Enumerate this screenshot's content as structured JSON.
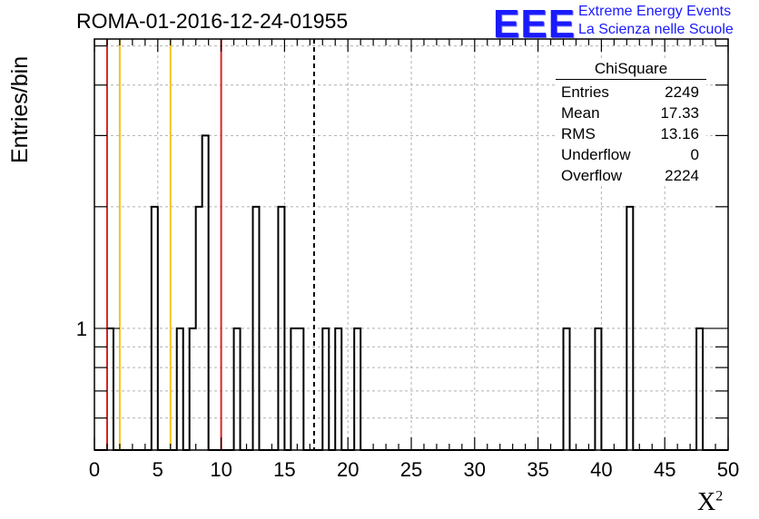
{
  "title": "ROMA-01-2016-12-24-01955",
  "logo": {
    "mark": "EEE",
    "line1": "Extreme Energy Events",
    "line2": "La Scienza nelle Scuole"
  },
  "stats": {
    "title": "ChiSquare",
    "rows": [
      {
        "label": "Entries",
        "value": "2249"
      },
      {
        "label": "Mean",
        "value": "17.33"
      },
      {
        "label": "RMS",
        "value": "13.16"
      },
      {
        "label": "Underflow",
        "value": "0"
      },
      {
        "label": "Overflow",
        "value": "2224"
      }
    ]
  },
  "chart_data": {
    "type": "bar",
    "xlabel": "X",
    "xlabel_sup": "2",
    "ylabel": "Entries/bin",
    "xlim": [
      0,
      50
    ],
    "yscale": "log",
    "ylim": [
      0.5,
      5.2
    ],
    "xticks": [
      "0",
      "5",
      "10",
      "15",
      "20",
      "25",
      "30",
      "35",
      "40",
      "45",
      "50"
    ],
    "yticks": [
      "1"
    ],
    "grid": true,
    "bin_width": 0.5,
    "bins": [
      {
        "x": 1.0,
        "count": 1
      },
      {
        "x": 4.5,
        "count": 2
      },
      {
        "x": 6.5,
        "count": 1
      },
      {
        "x": 7.5,
        "count": 1
      },
      {
        "x": 8.0,
        "count": 2
      },
      {
        "x": 8.5,
        "count": 3
      },
      {
        "x": 11.0,
        "count": 1
      },
      {
        "x": 12.5,
        "count": 2
      },
      {
        "x": 14.5,
        "count": 2
      },
      {
        "x": 15.5,
        "count": 1
      },
      {
        "x": 16.0,
        "count": 1
      },
      {
        "x": 18.0,
        "count": 1
      },
      {
        "x": 19.0,
        "count": 1
      },
      {
        "x": 20.5,
        "count": 1
      },
      {
        "x": 37.0,
        "count": 1
      },
      {
        "x": 39.5,
        "count": 1
      },
      {
        "x": 42.0,
        "count": 2
      },
      {
        "x": 47.5,
        "count": 1
      }
    ],
    "vertical_lines": [
      {
        "x": 1.0,
        "color": "#d62728",
        "style": "solid"
      },
      {
        "x": 2.0,
        "color": "#f5c518",
        "style": "solid"
      },
      {
        "x": 6.0,
        "color": "#f5c518",
        "style": "solid"
      },
      {
        "x": 10.0,
        "color": "#d62728",
        "style": "solid"
      },
      {
        "x": 17.33,
        "color": "#000000",
        "style": "dashed"
      }
    ],
    "legend_position": "top-right"
  }
}
